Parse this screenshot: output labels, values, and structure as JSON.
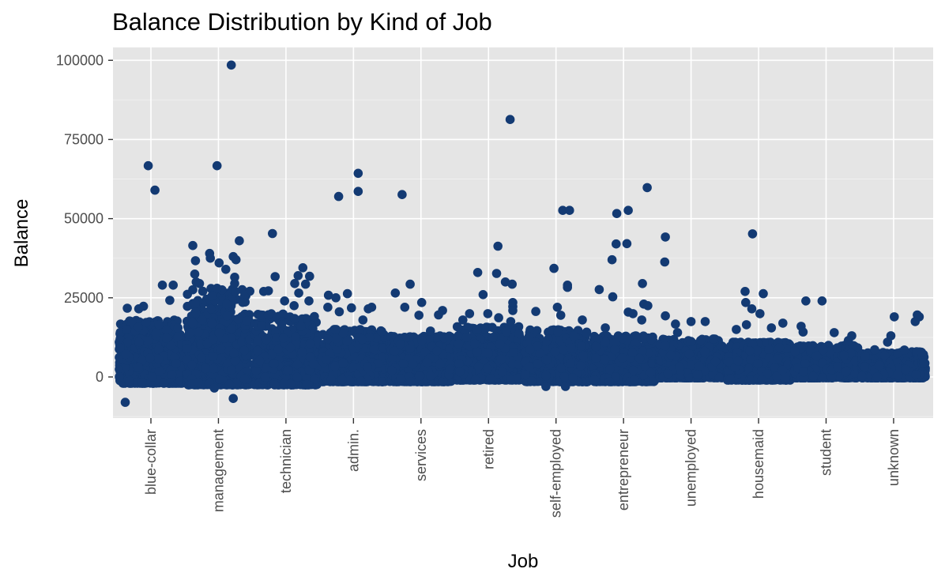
{
  "chart_data": {
    "type": "scatter",
    "title": "Balance Distribution by Kind of Job",
    "xlabel": "Job",
    "ylabel": "Balance",
    "categories": [
      "blue-collar",
      "management",
      "technician",
      "admin.",
      "services",
      "retired",
      "self-employed",
      "entrepreneur",
      "unemployed",
      "housemaid",
      "student",
      "unknown"
    ],
    "ylim": [
      -13000,
      103000
    ],
    "yticks": [
      0,
      25000,
      50000,
      75000,
      100000
    ],
    "ytick_labels": [
      "0",
      "25000",
      "50000",
      "75000",
      "100000"
    ],
    "grid": true,
    "point_color": "#133A73",
    "panel_background": "#E5E5E5",
    "dense_ranges": [
      {
        "job": "blue-collar",
        "low": -2000,
        "high": 13000,
        "extends_to": 18000
      },
      {
        "job": "management",
        "low": -2500,
        "high": 18000,
        "extends_to": 28000
      },
      {
        "job": "technician",
        "low": -2500,
        "high": 13000,
        "extends_to": 20000
      },
      {
        "job": "admin.",
        "low": -1500,
        "high": 10000,
        "extends_to": 15000
      },
      {
        "job": "services",
        "low": -1500,
        "high": 10000,
        "extends_to": 13000
      },
      {
        "job": "retired",
        "low": -1000,
        "high": 11000,
        "extends_to": 16000
      },
      {
        "job": "self-employed",
        "low": -1500,
        "high": 10000,
        "extends_to": 15000
      },
      {
        "job": "entrepreneur",
        "low": -1500,
        "high": 9000,
        "extends_to": 13000
      },
      {
        "job": "unemployed",
        "low": -300,
        "high": 8000,
        "extends_to": 12000
      },
      {
        "job": "housemaid",
        "low": -1000,
        "high": 7000,
        "extends_to": 11000
      },
      {
        "job": "student",
        "low": -300,
        "high": 7000,
        "extends_to": 10000
      },
      {
        "job": "unknown",
        "low": -300,
        "high": 4500,
        "extends_to": 8000
      }
    ],
    "outliers": [
      {
        "job": "blue-collar",
        "offset": -0.38,
        "y": -8000
      },
      {
        "job": "blue-collar",
        "offset": -0.04,
        "y": 66700
      },
      {
        "job": "blue-collar",
        "offset": 0.06,
        "y": 59000
      },
      {
        "job": "blue-collar",
        "offset": 0.17,
        "y": 29000
      },
      {
        "job": "blue-collar",
        "offset": 0.33,
        "y": 29000
      },
      {
        "job": "blue-collar",
        "offset": 0.28,
        "y": 24200
      },
      {
        "job": "blue-collar",
        "offset": -0.11,
        "y": 22300
      },
      {
        "job": "blue-collar",
        "offset": -0.35,
        "y": 21700
      },
      {
        "job": "blue-collar",
        "offset": -0.18,
        "y": 21500
      },
      {
        "job": "blue-collar",
        "offset": 0.12,
        "y": 16500
      },
      {
        "job": "blue-collar",
        "offset": 0.4,
        "y": 15500
      },
      {
        "job": "management",
        "offset": 0.19,
        "y": 98500
      },
      {
        "job": "management",
        "offset": -0.02,
        "y": 66700
      },
      {
        "job": "management",
        "offset": 0.31,
        "y": 43000
      },
      {
        "job": "management",
        "offset": -0.38,
        "y": 41500
      },
      {
        "job": "management",
        "offset": -0.13,
        "y": 39000
      },
      {
        "job": "management",
        "offset": -0.12,
        "y": 37500
      },
      {
        "job": "management",
        "offset": 0.22,
        "y": 38000
      },
      {
        "job": "management",
        "offset": 0.26,
        "y": 37000
      },
      {
        "job": "management",
        "offset": -0.34,
        "y": 36700
      },
      {
        "job": "management",
        "offset": 0.01,
        "y": 36000
      },
      {
        "job": "management",
        "offset": 0.11,
        "y": 34000
      },
      {
        "job": "management",
        "offset": -0.35,
        "y": 32500
      },
      {
        "job": "management",
        "offset": 0.24,
        "y": 31500
      },
      {
        "job": "management",
        "offset": -0.33,
        "y": 30000
      },
      {
        "job": "management",
        "offset": -0.28,
        "y": 29500
      },
      {
        "job": "management",
        "offset": 0.24,
        "y": 29500
      },
      {
        "job": "management",
        "offset": -0.02,
        "y": 28000
      },
      {
        "job": "management",
        "offset": 0.25,
        "y": 27000
      },
      {
        "job": "management",
        "offset": -0.06,
        "y": -3500
      },
      {
        "job": "management",
        "offset": 0.22,
        "y": -6800
      },
      {
        "job": "technician",
        "offset": -0.33,
        "y": 27000
      },
      {
        "job": "technician",
        "offset": -0.2,
        "y": 45300
      },
      {
        "job": "technician",
        "offset": -0.16,
        "y": 31700
      },
      {
        "job": "technician",
        "offset": 0.25,
        "y": 34500
      },
      {
        "job": "technician",
        "offset": 0.18,
        "y": 32000
      },
      {
        "job": "technician",
        "offset": 0.35,
        "y": 31800
      },
      {
        "job": "technician",
        "offset": 0.13,
        "y": 29500
      },
      {
        "job": "technician",
        "offset": 0.29,
        "y": 29300
      },
      {
        "job": "technician",
        "offset": 0.19,
        "y": 26500
      },
      {
        "job": "technician",
        "offset": 0.34,
        "y": 24000
      },
      {
        "job": "technician",
        "offset": -0.02,
        "y": 24000
      },
      {
        "job": "technician",
        "offset": 0.12,
        "y": 22500
      },
      {
        "job": "technician",
        "offset": -0.26,
        "y": 27200
      },
      {
        "job": "admin.",
        "offset": 0.07,
        "y": 64300
      },
      {
        "job": "admin.",
        "offset": 0.07,
        "y": 58600
      },
      {
        "job": "admin.",
        "offset": -0.22,
        "y": 57000
      },
      {
        "job": "admin.",
        "offset": -0.37,
        "y": 25800
      },
      {
        "job": "admin.",
        "offset": -0.26,
        "y": 25000
      },
      {
        "job": "admin.",
        "offset": -0.09,
        "y": 26300
      },
      {
        "job": "admin.",
        "offset": 0.27,
        "y": 22000
      },
      {
        "job": "admin.",
        "offset": 0.22,
        "y": 21500
      },
      {
        "job": "admin.",
        "offset": -0.03,
        "y": 21800
      },
      {
        "job": "admin.",
        "offset": -0.38,
        "y": 22000
      },
      {
        "job": "admin.",
        "offset": -0.21,
        "y": 20600
      },
      {
        "job": "admin.",
        "offset": 0.14,
        "y": 18000
      },
      {
        "job": "services",
        "offset": -0.28,
        "y": 57600
      },
      {
        "job": "services",
        "offset": -0.16,
        "y": 29300
      },
      {
        "job": "services",
        "offset": -0.38,
        "y": 26500
      },
      {
        "job": "services",
        "offset": -0.24,
        "y": 22000
      },
      {
        "job": "services",
        "offset": 0.01,
        "y": 23500
      },
      {
        "job": "services",
        "offset": 0.32,
        "y": 21000
      },
      {
        "job": "services",
        "offset": 0.26,
        "y": 19600
      },
      {
        "job": "services",
        "offset": -0.03,
        "y": 19500
      },
      {
        "job": "services",
        "offset": 0.14,
        "y": 14500
      },
      {
        "job": "retired",
        "offset": 0.32,
        "y": 81300
      },
      {
        "job": "retired",
        "offset": 0.14,
        "y": 41300
      },
      {
        "job": "retired",
        "offset": -0.16,
        "y": 33000
      },
      {
        "job": "retired",
        "offset": 0.12,
        "y": 32700
      },
      {
        "job": "retired",
        "offset": 0.25,
        "y": 30000
      },
      {
        "job": "retired",
        "offset": 0.35,
        "y": 29300
      },
      {
        "job": "retired",
        "offset": -0.08,
        "y": 26000
      },
      {
        "job": "retired",
        "offset": 0.36,
        "y": 23500
      },
      {
        "job": "retired",
        "offset": 0.36,
        "y": 22200
      },
      {
        "job": "retired",
        "offset": 0.36,
        "y": 21000
      },
      {
        "job": "retired",
        "offset": -0.28,
        "y": 20000
      },
      {
        "job": "retired",
        "offset": -0.01,
        "y": 20000
      },
      {
        "job": "retired",
        "offset": 0.15,
        "y": 18700
      },
      {
        "job": "retired",
        "offset": -0.38,
        "y": 18000
      },
      {
        "job": "retired",
        "offset": 0.33,
        "y": 17500
      },
      {
        "job": "self-employed",
        "offset": 0.1,
        "y": 52600
      },
      {
        "job": "self-employed",
        "offset": 0.2,
        "y": 52600
      },
      {
        "job": "self-employed",
        "offset": -0.03,
        "y": 34300
      },
      {
        "job": "self-employed",
        "offset": 0.17,
        "y": 29000
      },
      {
        "job": "self-employed",
        "offset": 0.17,
        "y": 28300
      },
      {
        "job": "self-employed",
        "offset": -0.3,
        "y": 20700
      },
      {
        "job": "self-employed",
        "offset": 0.02,
        "y": 22000
      },
      {
        "job": "self-employed",
        "offset": 0.39,
        "y": 18000
      },
      {
        "job": "self-employed",
        "offset": 0.07,
        "y": 19500
      },
      {
        "job": "self-employed",
        "offset": 0.14,
        "y": -3000
      },
      {
        "job": "self-employed",
        "offset": -0.15,
        "y": -3000
      },
      {
        "job": "entrepreneur",
        "offset": 0.35,
        "y": 59800
      },
      {
        "job": "entrepreneur",
        "offset": -0.1,
        "y": 51600
      },
      {
        "job": "entrepreneur",
        "offset": 0.07,
        "y": 52600
      },
      {
        "job": "entrepreneur",
        "offset": -0.11,
        "y": 42000
      },
      {
        "job": "entrepreneur",
        "offset": 0.05,
        "y": 42100
      },
      {
        "job": "entrepreneur",
        "offset": -0.17,
        "y": 37000
      },
      {
        "job": "entrepreneur",
        "offset": 0.28,
        "y": 29500
      },
      {
        "job": "entrepreneur",
        "offset": -0.36,
        "y": 27600
      },
      {
        "job": "entrepreneur",
        "offset": -0.16,
        "y": 25300
      },
      {
        "job": "entrepreneur",
        "offset": 0.3,
        "y": 23000
      },
      {
        "job": "entrepreneur",
        "offset": 0.36,
        "y": 22500
      },
      {
        "job": "entrepreneur",
        "offset": 0.07,
        "y": 20500
      },
      {
        "job": "entrepreneur",
        "offset": 0.14,
        "y": 20000
      },
      {
        "job": "entrepreneur",
        "offset": 0.27,
        "y": 18000
      },
      {
        "job": "entrepreneur",
        "offset": -0.27,
        "y": 15500
      },
      {
        "job": "unemployed",
        "offset": -0.38,
        "y": 44200
      },
      {
        "job": "unemployed",
        "offset": -0.39,
        "y": 36300
      },
      {
        "job": "unemployed",
        "offset": -0.38,
        "y": 19300
      },
      {
        "job": "unemployed",
        "offset": -0.23,
        "y": 16700
      },
      {
        "job": "unemployed",
        "offset": 0.0,
        "y": 17500
      },
      {
        "job": "unemployed",
        "offset": 0.21,
        "y": 17500
      },
      {
        "job": "unemployed",
        "offset": 0.33,
        "y": 12000
      },
      {
        "job": "unemployed",
        "offset": -0.2,
        "y": 14000
      },
      {
        "job": "housemaid",
        "offset": -0.09,
        "y": 45200
      },
      {
        "job": "housemaid",
        "offset": -0.2,
        "y": 27000
      },
      {
        "job": "housemaid",
        "offset": -0.19,
        "y": 23500
      },
      {
        "job": "housemaid",
        "offset": -0.1,
        "y": 21500
      },
      {
        "job": "housemaid",
        "offset": 0.07,
        "y": 26300
      },
      {
        "job": "housemaid",
        "offset": 0.02,
        "y": 20000
      },
      {
        "job": "housemaid",
        "offset": 0.36,
        "y": 17000
      },
      {
        "job": "housemaid",
        "offset": -0.18,
        "y": 16500
      },
      {
        "job": "housemaid",
        "offset": -0.33,
        "y": 15000
      },
      {
        "job": "housemaid",
        "offset": 0.19,
        "y": 15500
      },
      {
        "job": "student",
        "offset": -0.3,
        "y": 24000
      },
      {
        "job": "student",
        "offset": -0.06,
        "y": 24000
      },
      {
        "job": "student",
        "offset": -0.37,
        "y": 16000
      },
      {
        "job": "student",
        "offset": -0.34,
        "y": 14200
      },
      {
        "job": "student",
        "offset": 0.12,
        "y": 14000
      },
      {
        "job": "student",
        "offset": 0.38,
        "y": 13000
      },
      {
        "job": "student",
        "offset": 0.33,
        "y": 11500
      },
      {
        "job": "unknown",
        "offset": 0.01,
        "y": 19000
      },
      {
        "job": "unknown",
        "offset": 0.35,
        "y": 19600
      },
      {
        "job": "unknown",
        "offset": 0.38,
        "y": 19000
      },
      {
        "job": "unknown",
        "offset": 0.32,
        "y": 17500
      },
      {
        "job": "unknown",
        "offset": -0.09,
        "y": 11000
      },
      {
        "job": "unknown",
        "offset": -0.04,
        "y": 13000
      },
      {
        "job": "unknown",
        "offset": -0.28,
        "y": 8600
      },
      {
        "job": "unknown",
        "offset": 0.16,
        "y": 8500
      }
    ]
  }
}
